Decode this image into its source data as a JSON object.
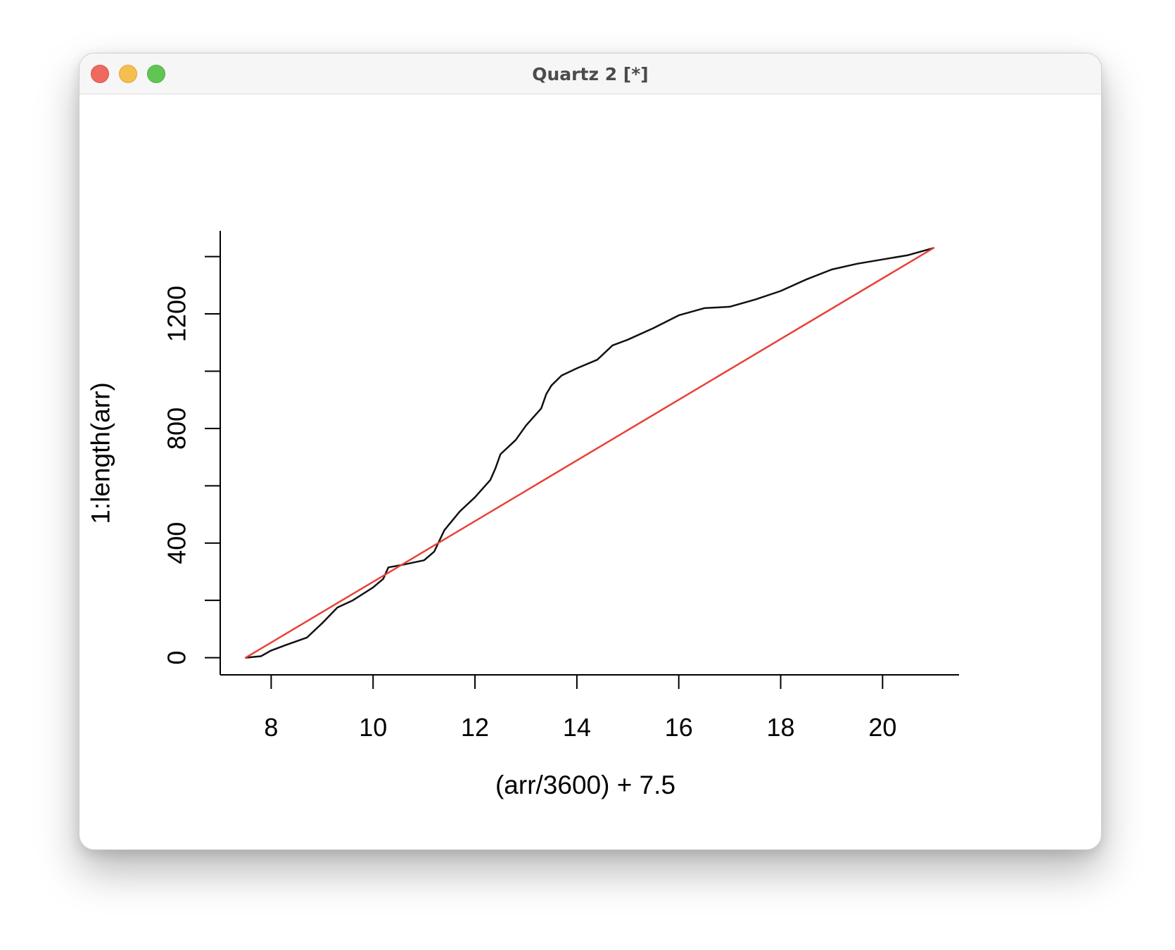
{
  "window": {
    "title": "Quartz 2 [*]"
  },
  "colors": {
    "observed": "#111111",
    "reference": "#e8413a",
    "axis": "#000000"
  },
  "chart_data": {
    "type": "line",
    "title": "",
    "xlabel": "(arr/3600) + 7.5",
    "ylabel": "1:length(arr)",
    "xlim": [
      7.0,
      21.5
    ],
    "ylim": [
      -60,
      1490
    ],
    "xticks": [
      8,
      10,
      12,
      14,
      16,
      18,
      20
    ],
    "xtick_labels": [
      "8",
      "10",
      "12",
      "14",
      "16",
      "18",
      "20"
    ],
    "yticks": [
      0,
      200,
      400,
      600,
      800,
      1000,
      1200,
      1400
    ],
    "ytick_labels": [
      "0",
      "",
      "400",
      "",
      "800",
      "",
      "1200",
      ""
    ],
    "grid": false,
    "legend": "none",
    "series": [
      {
        "x": [
          7.5,
          7.8,
          8.0,
          8.3,
          8.7,
          9.0,
          9.3,
          9.6,
          10.0,
          10.2,
          10.3,
          10.6,
          11.0,
          11.2,
          11.4,
          11.7,
          12.0,
          12.3,
          12.4,
          12.5,
          12.8,
          13.0,
          13.3,
          13.4,
          13.5,
          13.7,
          14.0,
          14.4,
          14.7,
          15.0,
          15.5,
          16.0,
          16.5,
          17.0,
          17.5,
          18.0,
          18.5,
          19.0,
          19.5,
          20.0,
          20.5,
          21.0
        ],
        "y": [
          0,
          5,
          25,
          45,
          70,
          120,
          175,
          200,
          245,
          275,
          315,
          325,
          340,
          370,
          445,
          510,
          560,
          620,
          660,
          710,
          760,
          810,
          870,
          920,
          950,
          985,
          1010,
          1040,
          1090,
          1110,
          1150,
          1195,
          1220,
          1225,
          1250,
          1280,
          1320,
          1355,
          1375,
          1390,
          1405,
          1430
        ]
      },
      {
        "x": [
          7.5,
          21.0
        ],
        "y": [
          0,
          1430
        ]
      }
    ]
  }
}
